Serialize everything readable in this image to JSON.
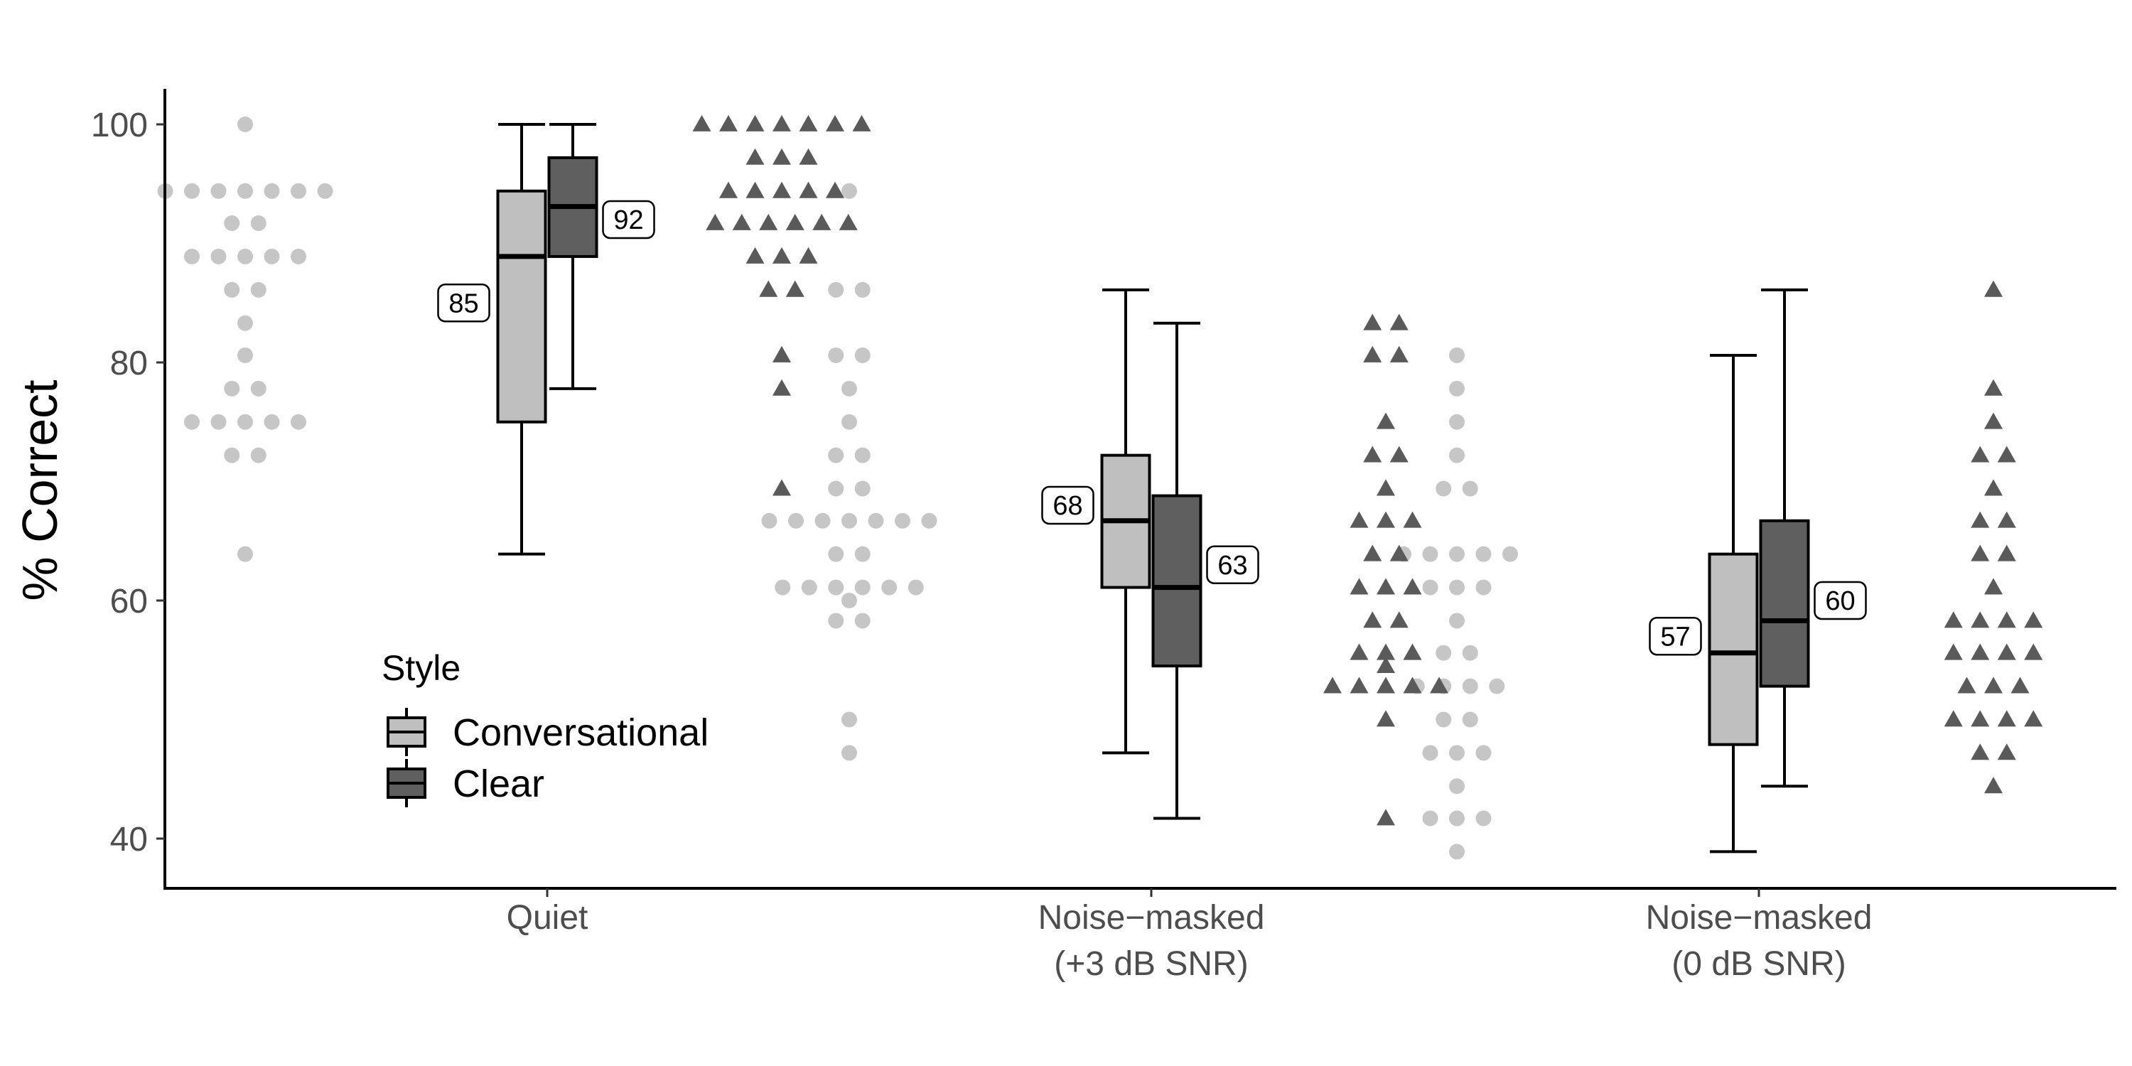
{
  "chart_data": {
    "type": "box",
    "title": "",
    "xlabel": "",
    "ylabel": "% Correct",
    "ylim": [
      36,
      103
    ],
    "yticks": [
      40,
      60,
      80,
      100
    ],
    "categories": [
      "Quiet",
      "Noise−masked\n(+3 dB SNR)",
      "Noise−masked\n(0 dB SNR)"
    ],
    "grid": false,
    "legend": {
      "title": "Style",
      "position": "inside-bottom-left",
      "entries": [
        "Conversational",
        "Clear"
      ]
    },
    "colors": {
      "Conversational": "#bfbfbf",
      "Clear": "#5f5f5f",
      "conversational_points": "#c6c6c6",
      "clear_points": "#5a5a5a"
    },
    "series": [
      {
        "name": "Conversational",
        "marker": "circle",
        "boxes": [
          {
            "category": "Quiet",
            "whisker_low": 63.9,
            "q1": 75.0,
            "median": 88.9,
            "q3": 94.4,
            "whisker_high": 100.0,
            "mean_label": "85"
          },
          {
            "category": "Noise−masked\n(+3 dB SNR)",
            "whisker_low": 47.2,
            "q1": 61.1,
            "median": 66.7,
            "q3": 72.2,
            "whisker_high": 86.1,
            "mean_label": "68"
          },
          {
            "category": "Noise−masked\n(0 dB SNR)",
            "whisker_low": 38.9,
            "q1": 47.9,
            "median": 55.6,
            "q3": 63.9,
            "whisker_high": 80.6,
            "mean_label": "57"
          }
        ],
        "points": [
          {
            "category": "Quiet",
            "values": [
              100,
              94.4,
              94.4,
              94.4,
              94.4,
              94.4,
              94.4,
              94.4,
              91.7,
              91.7,
              88.9,
              88.9,
              88.9,
              88.9,
              88.9,
              86.1,
              86.1,
              83.3,
              80.6,
              77.8,
              77.8,
              75.0,
              75.0,
              75.0,
              75.0,
              75.0,
              72.2,
              72.2,
              63.9
            ]
          },
          {
            "category": "Noise−masked\n(+3 dB SNR)",
            "values": [
              94.4,
              86.1,
              86.1,
              80.6,
              80.6,
              77.8,
              75.0,
              72.2,
              72.2,
              69.4,
              69.4,
              66.7,
              66.7,
              66.7,
              66.7,
              66.7,
              66.7,
              66.7,
              63.9,
              63.9,
              61.1,
              61.1,
              61.1,
              61.1,
              61.1,
              61.1,
              60.0,
              58.3,
              58.3,
              50.0,
              47.2
            ]
          },
          {
            "category": "Noise−masked\n(0 dB SNR)",
            "values": [
              80.6,
              77.8,
              75.0,
              72.2,
              69.4,
              69.4,
              63.9,
              63.9,
              63.9,
              63.9,
              63.9,
              61.1,
              61.1,
              61.1,
              58.3,
              55.6,
              55.6,
              52.8,
              52.8,
              52.8,
              52.8,
              50.0,
              50.0,
              47.2,
              47.2,
              47.2,
              44.4,
              41.7,
              41.7,
              41.7,
              38.9
            ]
          }
        ]
      },
      {
        "name": "Clear",
        "marker": "triangle",
        "boxes": [
          {
            "category": "Quiet",
            "whisker_low": 77.8,
            "q1": 88.9,
            "median": 93.1,
            "q3": 97.2,
            "whisker_high": 100.0,
            "mean_label": "92"
          },
          {
            "category": "Noise−masked\n(+3 dB SNR)",
            "whisker_low": 41.7,
            "q1": 54.5,
            "median": 61.1,
            "q3": 68.8,
            "whisker_high": 83.3,
            "mean_label": "63"
          },
          {
            "category": "Noise−masked\n(0 dB SNR)",
            "whisker_low": 44.4,
            "q1": 52.8,
            "median": 58.3,
            "q3": 66.7,
            "whisker_high": 86.1,
            "mean_label": "60"
          }
        ],
        "points": [
          {
            "category": "Quiet",
            "values": [
              100,
              100,
              100,
              100,
              100,
              100,
              100,
              97.2,
              97.2,
              97.2,
              94.4,
              94.4,
              94.4,
              94.4,
              94.4,
              91.7,
              91.7,
              91.7,
              91.7,
              91.7,
              91.7,
              88.9,
              88.9,
              88.9,
              86.1,
              86.1,
              80.6,
              77.8,
              69.4
            ]
          },
          {
            "category": "Noise−masked\n(+3 dB SNR)",
            "values": [
              83.3,
              83.3,
              80.6,
              80.6,
              75.0,
              72.2,
              72.2,
              69.4,
              66.7,
              66.7,
              66.7,
              63.9,
              63.9,
              61.1,
              61.1,
              61.1,
              58.3,
              58.3,
              55.6,
              55.6,
              55.6,
              54.5,
              52.8,
              52.8,
              52.8,
              52.8,
              52.8,
              50.0,
              41.7
            ]
          },
          {
            "category": "Noise−masked\n(0 dB SNR)",
            "values": [
              86.1,
              77.8,
              75.0,
              72.2,
              72.2,
              69.4,
              66.7,
              66.7,
              63.9,
              63.9,
              61.1,
              58.3,
              58.3,
              58.3,
              58.3,
              55.6,
              55.6,
              55.6,
              55.6,
              52.8,
              52.8,
              52.8,
              50.0,
              50.0,
              50.0,
              50.0,
              47.2,
              47.2,
              44.4
            ]
          }
        ]
      }
    ]
  }
}
